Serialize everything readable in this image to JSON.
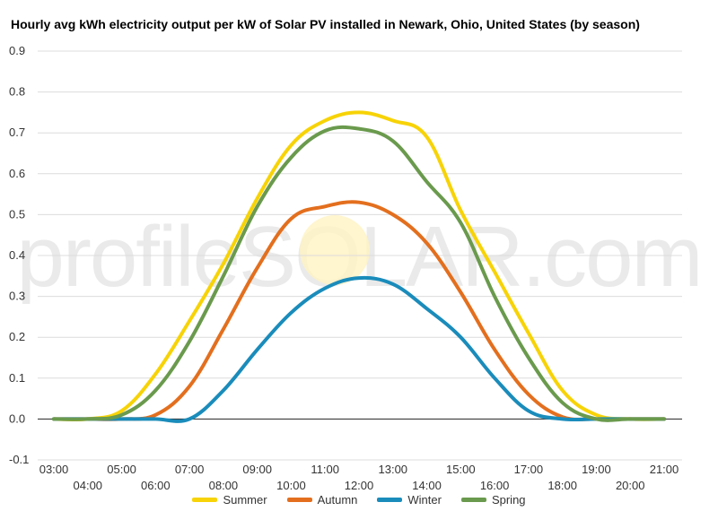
{
  "chart_data": {
    "type": "line",
    "title": "Hourly avg kWh electricity output per kW of Solar PV installed in Newark, Ohio, United States (by season)",
    "xlabel": "",
    "ylabel": "",
    "watermark": "profileSOLAR.com",
    "ylim": [
      -0.1,
      0.9
    ],
    "yticks": [
      "-0.1",
      "0.0",
      "0.1",
      "0.2",
      "0.3",
      "0.4",
      "0.5",
      "0.6",
      "0.7",
      "0.8",
      "0.9"
    ],
    "xticks": [
      "03:00",
      "04:00",
      "05:00",
      "06:00",
      "07:00",
      "08:00",
      "09:00",
      "10:00",
      "11:00",
      "12:00",
      "13:00",
      "14:00",
      "15:00",
      "16:00",
      "17:00",
      "18:00",
      "19:00",
      "20:00",
      "21:00"
    ],
    "grid": true,
    "legend_position": "bottom",
    "x": [
      "03:00",
      "04:00",
      "05:00",
      "06:00",
      "07:00",
      "08:00",
      "09:00",
      "10:00",
      "11:00",
      "12:00",
      "13:00",
      "14:00",
      "15:00",
      "16:00",
      "17:00",
      "18:00",
      "19:00",
      "20:00",
      "21:00"
    ],
    "series": [
      {
        "name": "Summer",
        "color": "#f7d307",
        "values": [
          0,
          0,
          0.02,
          0.11,
          0.24,
          0.38,
          0.54,
          0.67,
          0.73,
          0.75,
          0.73,
          0.69,
          0.51,
          0.36,
          0.21,
          0.07,
          0.01,
          0,
          0
        ]
      },
      {
        "name": "Autumn",
        "color": "#e36f1e",
        "values": [
          0,
          0,
          0,
          0.01,
          0.08,
          0.22,
          0.37,
          0.49,
          0.52,
          0.53,
          0.5,
          0.43,
          0.31,
          0.17,
          0.06,
          0.005,
          0,
          0,
          0
        ]
      },
      {
        "name": "Winter",
        "color": "#1a8cbb",
        "values": [
          0,
          0,
          0,
          0,
          0,
          0.07,
          0.17,
          0.26,
          0.32,
          0.345,
          0.33,
          0.27,
          0.2,
          0.1,
          0.02,
          0,
          0,
          0,
          0
        ]
      },
      {
        "name": "Spring",
        "color": "#6a9a4d",
        "values": [
          0,
          0,
          0.01,
          0.07,
          0.19,
          0.35,
          0.52,
          0.64,
          0.705,
          0.71,
          0.68,
          0.58,
          0.48,
          0.3,
          0.15,
          0.04,
          0,
          0,
          0
        ]
      }
    ]
  }
}
